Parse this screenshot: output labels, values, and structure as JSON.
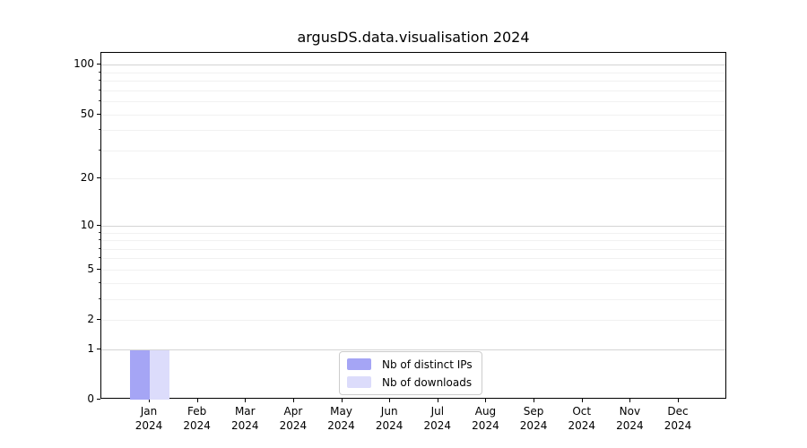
{
  "chart_data": {
    "type": "bar",
    "title": "argusDS.data.visualisation 2024",
    "x_months": [
      "Jan",
      "Feb",
      "Mar",
      "Apr",
      "May",
      "Jun",
      "Jul",
      "Aug",
      "Sep",
      "Oct",
      "Nov",
      "Dec"
    ],
    "x_year_label": "2024",
    "series": [
      {
        "name": "Nb of distinct IPs",
        "color": "#a5a5f5",
        "values": [
          1,
          0,
          0,
          0,
          0,
          0,
          0,
          0,
          0,
          0,
          0,
          0
        ]
      },
      {
        "name": "Nb of downloads",
        "color": "#dcdcfb",
        "values": [
          1,
          0,
          0,
          0,
          0,
          0,
          0,
          0,
          0,
          0,
          0,
          0
        ]
      }
    ],
    "y_axis": {
      "scale": "log1p",
      "tick_labels": [
        "0",
        "1",
        "2",
        "5",
        "10",
        "20",
        "50",
        "100"
      ],
      "tick_values": [
        0,
        1,
        2,
        5,
        10,
        20,
        50,
        100
      ],
      "major_gridlines": [
        1,
        10,
        100
      ],
      "minor_gridlines": [
        2,
        3,
        4,
        5,
        6,
        7,
        8,
        9,
        20,
        30,
        40,
        50,
        60,
        70,
        80,
        90
      ],
      "ylim": [
        0,
        118
      ]
    },
    "grid": "horizontal",
    "legend_position": "lower center"
  },
  "colors": {
    "major_grid": "#d4d4d4",
    "minor_grid": "#f1f1f1",
    "axis": "#000000",
    "legend_border": "#cccccc"
  }
}
